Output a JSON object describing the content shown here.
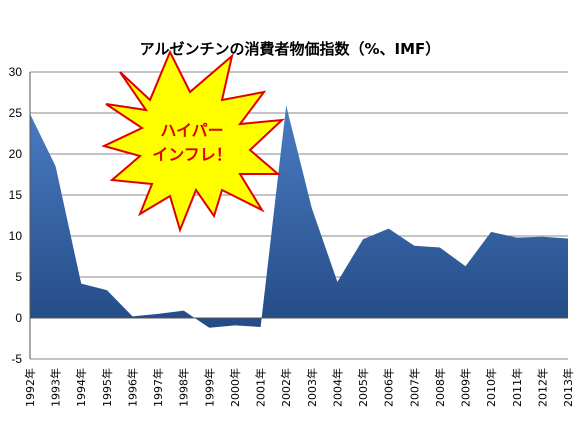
{
  "chart_data": {
    "type": "area",
    "title": "アルゼンチンの消費者物価指数（%、IMF）",
    "xlabel": "",
    "ylabel": "",
    "ylim": [
      -5,
      30
    ],
    "yticks": [
      -5,
      0,
      5,
      10,
      15,
      20,
      25,
      30
    ],
    "grid": true,
    "legend": "none",
    "categories": [
      "1992年",
      "1993年",
      "1994年",
      "1995年",
      "1996年",
      "1997年",
      "1998年",
      "1999年",
      "2000年",
      "2001年",
      "2002年",
      "2003年",
      "2004年",
      "2005年",
      "2006年",
      "2007年",
      "2008年",
      "2009年",
      "2010年",
      "2011年",
      "2012年",
      "2013年"
    ],
    "series": [
      {
        "values": [
          24.9,
          18.5,
          4.2,
          3.4,
          0.2,
          0.5,
          0.9,
          -1.2,
          -0.9,
          -1.1,
          25.9,
          13.4,
          4.4,
          9.6,
          10.9,
          8.8,
          8.6,
          6.3,
          10.5,
          9.8,
          9.9,
          9.7
        ]
      }
    ],
    "annotation": {
      "lines": [
        "ハイパー",
        "インフレ！"
      ]
    },
    "colors": {
      "area": "#3d6bb0",
      "area_top": "#4a7cc4",
      "area_bottom": "#244b85",
      "grid": "#888888",
      "burst_fill": "#ffff00",
      "burst_stroke": "#e00000",
      "burst_text": "#e00000"
    }
  }
}
